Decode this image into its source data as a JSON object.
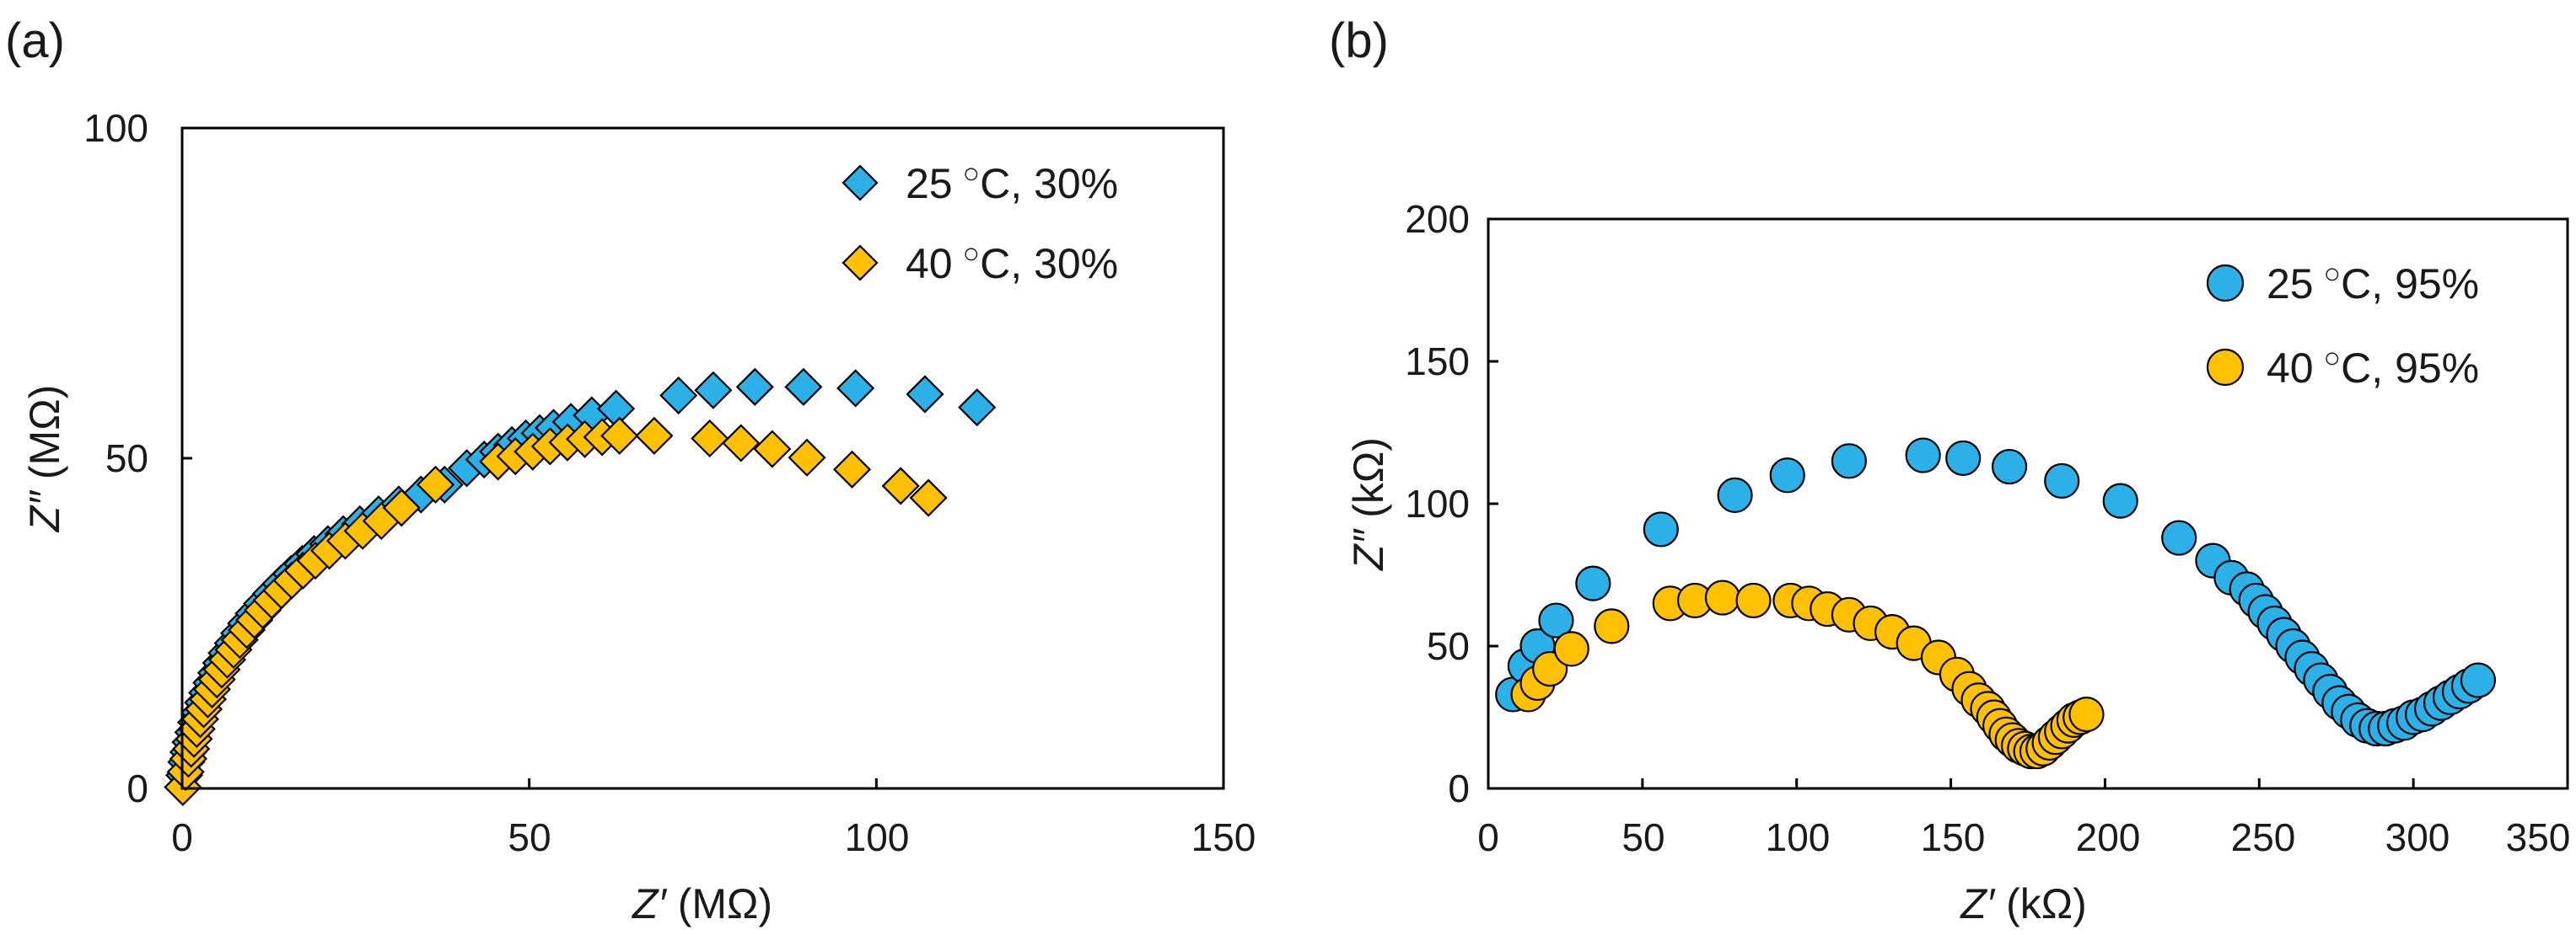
{
  "colors": {
    "blue": "#2BB0E8",
    "orange": "#FFC000"
  },
  "chart_data": [
    {
      "panel_label": "(a)",
      "type": "scatter",
      "marker": "diamond",
      "xlabel_var": "Z′",
      "xlabel_unit": " (MΩ)",
      "ylabel_var": "Z″",
      "ylabel_unit": " (MΩ)",
      "xlim": [
        0,
        150
      ],
      "ylim": [
        0,
        100
      ],
      "xticks": [
        "0",
        "50",
        "100",
        "150"
      ],
      "yticks": [
        "0",
        "50",
        "100"
      ],
      "grid": false,
      "legend_position": "top-right",
      "series": [
        {
          "name": "25 °C, 30%",
          "legend_value": "25",
          "legend_unit": "C, 30%",
          "color": "#2BB0E8",
          "x": [
            0.3,
            0.6,
            0.9,
            1.2,
            1.6,
            2.0,
            2.5,
            3.0,
            3.6,
            4.2,
            4.9,
            5.6,
            6.4,
            7.3,
            8.2,
            9.2,
            10.3,
            11.5,
            12.8,
            14.2,
            15.7,
            17.3,
            19.0,
            21.0,
            23.2,
            25.6,
            28.3,
            31.2,
            34.4,
            37.8,
            41.0,
            43.5,
            45.5,
            47.5,
            49.5,
            51.5,
            53.5,
            56.0,
            59.0,
            62.5,
            71.5,
            76.5,
            82.5,
            89.5,
            97.0,
            107.0,
            114.5
          ],
          "y": [
            2.0,
            4.0,
            5.5,
            7.0,
            8.5,
            10.0,
            11.5,
            13.0,
            14.5,
            16.0,
            17.5,
            19.0,
            20.5,
            22.0,
            23.5,
            25.0,
            26.5,
            28.0,
            29.5,
            31.0,
            32.5,
            34.0,
            35.5,
            37.0,
            38.5,
            40.0,
            41.5,
            43.0,
            44.5,
            46.0,
            48.5,
            49.8,
            51.0,
            52.0,
            53.0,
            53.8,
            54.6,
            55.5,
            56.5,
            57.5,
            59.5,
            60.3,
            60.8,
            60.8,
            60.6,
            59.7,
            57.7
          ]
        },
        {
          "name": "40 °C, 30%",
          "legend_value": "40",
          "legend_unit": "C, 30%",
          "color": "#FFC000",
          "x": [
            0.1,
            0.5,
            0.9,
            1.3,
            1.7,
            2.1,
            2.6,
            3.1,
            3.7,
            4.3,
            5.0,
            5.7,
            6.5,
            7.4,
            8.3,
            9.3,
            10.4,
            11.6,
            12.9,
            14.3,
            15.8,
            17.4,
            19.2,
            21.2,
            23.5,
            26.0,
            28.7,
            31.6,
            36.5,
            45.5,
            48.0,
            50.5,
            53.0,
            55.5,
            58.0,
            60.5,
            63.0,
            68.0,
            76.0,
            80.5,
            85.0,
            90.0,
            96.5,
            103.5,
            107.5
          ],
          "y": [
            0.2,
            2.5,
            4.5,
            6.0,
            7.5,
            9.0,
            10.5,
            12.0,
            13.5,
            15.0,
            16.5,
            18.0,
            19.5,
            21.0,
            22.5,
            24.0,
            25.5,
            27.0,
            28.5,
            30.0,
            31.5,
            33.0,
            34.5,
            36.0,
            37.5,
            39.0,
            40.5,
            42.5,
            46.0,
            49.5,
            50.3,
            51.0,
            51.8,
            52.4,
            52.9,
            53.2,
            53.4,
            53.4,
            53.0,
            52.3,
            51.4,
            50.1,
            48.3,
            45.8,
            44.0
          ]
        }
      ]
    },
    {
      "panel_label": "(b)",
      "type": "scatter",
      "marker": "circle",
      "xlabel_var": "Z′",
      "xlabel_unit": " (kΩ)",
      "ylabel_var": "Z″",
      "ylabel_unit": " (kΩ)",
      "xlim": [
        0,
        350
      ],
      "ylim": [
        0,
        200
      ],
      "xticks": [
        "0",
        "50",
        "100",
        "150",
        "200",
        "250",
        "300",
        "350"
      ],
      "yticks": [
        "0",
        "50",
        "100",
        "150",
        "200"
      ],
      "grid": false,
      "legend_position": "top-right",
      "series": [
        {
          "name": "25 °C, 95%",
          "legend_value": "25",
          "legend_unit": "C, 95%",
          "color": "#2BB0E8",
          "x": [
            8,
            12,
            16,
            22,
            34,
            56,
            80,
            97,
            117,
            141,
            154,
            169,
            186,
            205,
            224,
            235,
            241,
            246,
            249,
            252,
            255,
            258,
            261,
            264,
            267,
            270,
            273,
            276,
            279,
            282,
            285,
            288,
            291,
            294,
            297,
            300,
            303,
            306,
            309,
            312,
            315,
            318,
            321
          ],
          "y": [
            33,
            43,
            50,
            59,
            72,
            91,
            103,
            110,
            115,
            117,
            116,
            113,
            108,
            101,
            88,
            80,
            74,
            70,
            66,
            62,
            58,
            54,
            50,
            46,
            42,
            38,
            34,
            30,
            27,
            24,
            22,
            21,
            21,
            22,
            23,
            25,
            26,
            28,
            30,
            32,
            34,
            36,
            38
          ]
        },
        {
          "name": "40 °C, 95%",
          "legend_value": "40",
          "legend_unit": "C, 95%",
          "color": "#FFC000",
          "x": [
            13,
            16,
            20,
            27,
            40,
            59,
            67,
            76,
            86,
            98,
            104,
            110,
            117,
            124,
            131,
            138,
            146,
            152,
            156,
            159,
            162,
            164,
            166,
            168,
            170,
            172,
            174,
            176,
            178,
            180,
            182,
            184,
            186,
            188,
            190,
            192,
            194
          ],
          "y": [
            33,
            37,
            42,
            49,
            57,
            65,
            66,
            67,
            66,
            66,
            65,
            63,
            61,
            58,
            55,
            51,
            46,
            40,
            35,
            31,
            28,
            25,
            22,
            19,
            17,
            15,
            14,
            13,
            13,
            14,
            16,
            18,
            20,
            22,
            24,
            25,
            26
          ]
        }
      ]
    }
  ]
}
